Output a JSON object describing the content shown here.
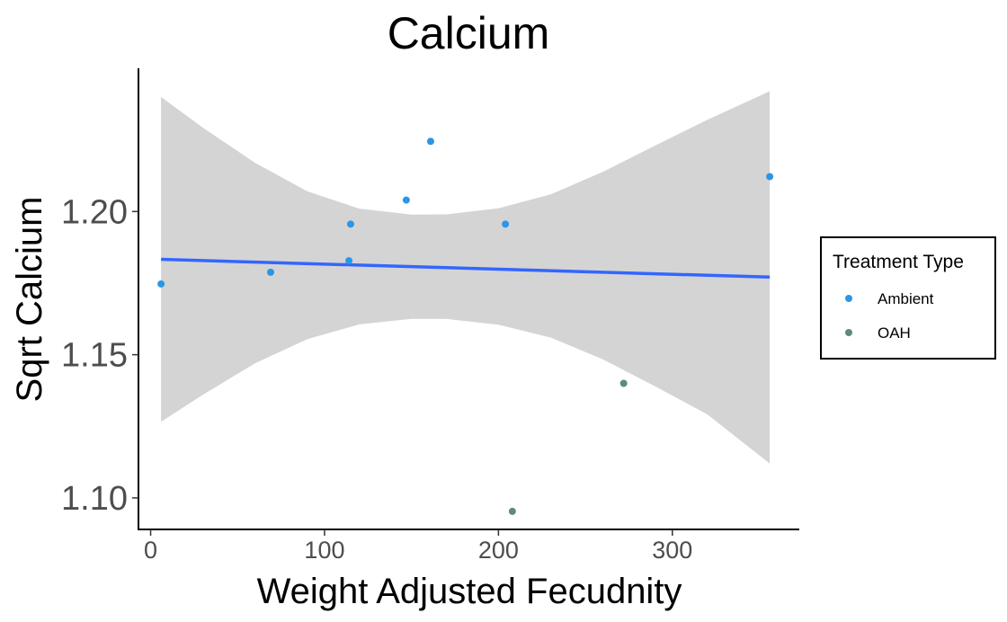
{
  "chart_data": {
    "type": "scatter",
    "title": "Calcium",
    "xlabel": "Weight Adjusted Fecudnity",
    "ylabel": "Sqrt Calcium",
    "xlim": [
      -7,
      373
    ],
    "ylim": [
      1.089,
      1.25
    ],
    "x_ticks": [
      0,
      100,
      200,
      300
    ],
    "x_tick_labels": [
      "0",
      "100",
      "200",
      "300"
    ],
    "y_ticks": [
      1.1,
      1.15,
      1.2
    ],
    "y_tick_labels": [
      "1.10",
      "1.15",
      "1.20"
    ],
    "grid": false,
    "legend": {
      "title": "Treatment Type",
      "position": "right",
      "entries": [
        {
          "label": "Ambient",
          "color": "#2a96e8"
        },
        {
          "label": "OAH",
          "color": "#5f8a7a"
        }
      ]
    },
    "series": [
      {
        "name": "Ambient",
        "color": "#2a96e8",
        "points": [
          {
            "x": 6,
            "y": 1.1747
          },
          {
            "x": 69,
            "y": 1.1788
          },
          {
            "x": 114,
            "y": 1.1828
          },
          {
            "x": 115,
            "y": 1.1956
          },
          {
            "x": 147,
            "y": 1.204
          },
          {
            "x": 161,
            "y": 1.2245
          },
          {
            "x": 204,
            "y": 1.1956
          },
          {
            "x": 356,
            "y": 1.2122
          }
        ]
      },
      {
        "name": "OAH",
        "color": "#5f8a7a",
        "points": [
          {
            "x": 208,
            "y": 1.0953
          },
          {
            "x": 272,
            "y": 1.14
          }
        ]
      }
    ],
    "trend_line": {
      "color": "#3366ff",
      "x_start": 6,
      "y_start": 1.1833,
      "x_end": 356,
      "y_end": 1.1771
    },
    "confidence_band": {
      "color": "#d4d4d4",
      "x": [
        6,
        30,
        60,
        90,
        120,
        150,
        170,
        200,
        230,
        260,
        290,
        320,
        356
      ],
      "upper": [
        1.24,
        1.2293,
        1.217,
        1.2071,
        1.201,
        1.1989,
        1.199,
        1.2011,
        1.206,
        1.2138,
        1.223,
        1.232,
        1.242
      ],
      "lower": [
        1.1266,
        1.136,
        1.147,
        1.1554,
        1.1606,
        1.1625,
        1.1625,
        1.1605,
        1.156,
        1.1484,
        1.139,
        1.1292,
        1.112
      ]
    }
  }
}
